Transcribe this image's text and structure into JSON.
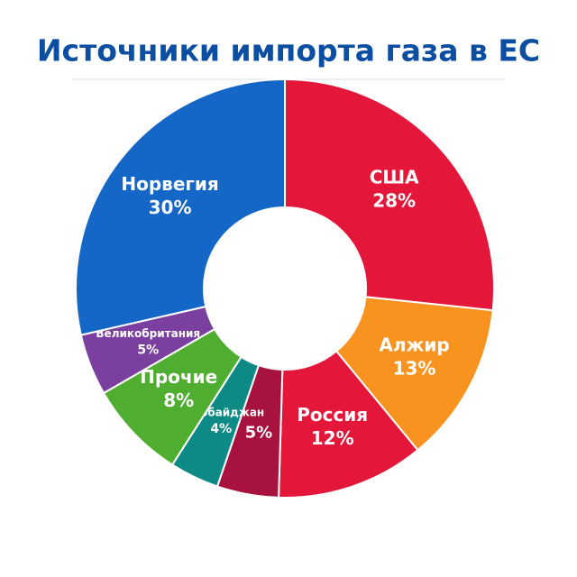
{
  "chart_data": {
    "type": "donut",
    "title": "Источники импорта газа в ЕС",
    "categories": [
      "США",
      "Алжир",
      "Россия",
      null,
      "Азербайджан",
      "Прочие",
      "Великобритания",
      "Норвегия"
    ],
    "values": [
      28,
      13,
      12,
      5,
      4,
      8,
      5,
      30
    ],
    "value_labels": [
      "28%",
      "13%",
      "12%",
      "5%",
      "4%",
      "8%",
      "5%",
      "30%"
    ],
    "colors": [
      "#e4173a",
      "#f7931e",
      "#e4173a",
      "#a8123e",
      "#0e8a86",
      "#4fae2f",
      "#7b3fa0",
      "#1466c7"
    ]
  }
}
